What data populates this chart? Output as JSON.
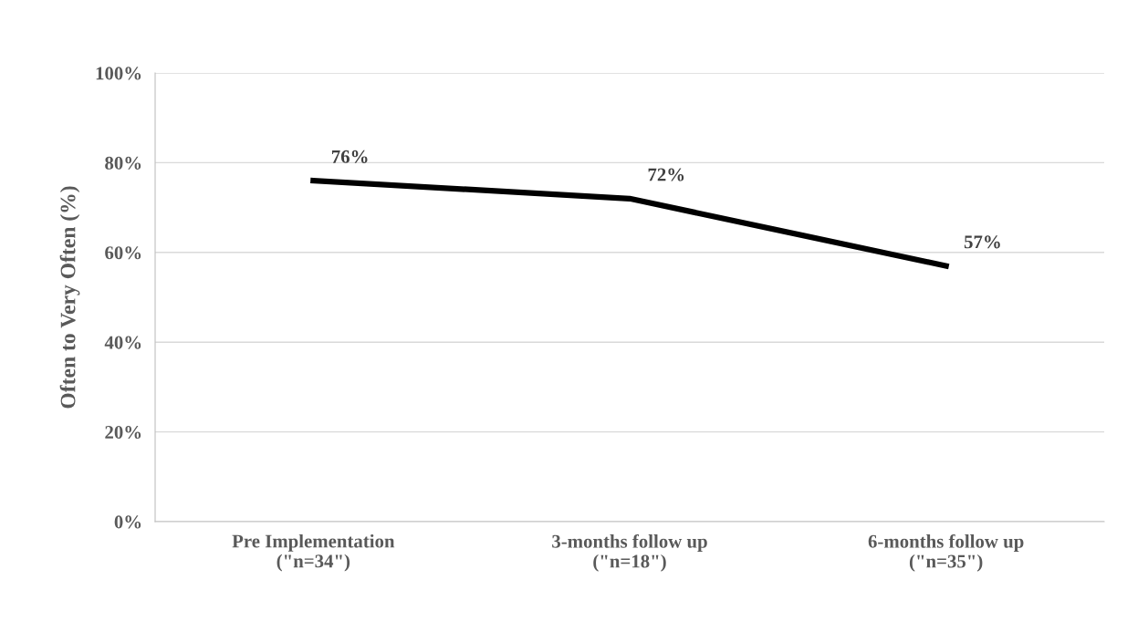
{
  "chart_data": {
    "type": "line",
    "ylabel": "Often to Very Often (%)",
    "categories": [
      "Pre Implementation\n(\"n=34\")",
      "3-months follow up\n(\"n=18\")",
      "6-months follow up\n(\"n=35\")"
    ],
    "series": [
      {
        "color": "#000000",
        "values": [
          76,
          72,
          57
        ],
        "value_labels": [
          "76%",
          "72%",
          "57%"
        ]
      }
    ],
    "ylim": [
      0,
      100
    ],
    "yticks": [
      {
        "value": 0,
        "label": "0%"
      },
      {
        "value": 20,
        "label": "20%"
      },
      {
        "value": 40,
        "label": "40%"
      },
      {
        "value": 60,
        "label": "60%"
      },
      {
        "value": 80,
        "label": "80%"
      },
      {
        "value": 100,
        "label": "100%"
      }
    ],
    "grid": "y",
    "marker": "none",
    "line_style": "solid",
    "legend": false
  }
}
